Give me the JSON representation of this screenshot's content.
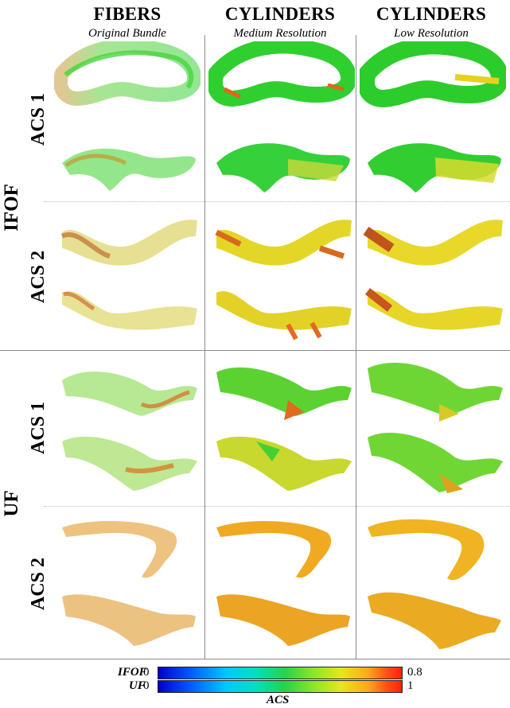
{
  "columns": [
    {
      "title": "FIBERS",
      "subtitle": "Original Bundle"
    },
    {
      "title": "CYLINDERS",
      "subtitle": "Medium Resolution"
    },
    {
      "title": "CYLINDERS",
      "subtitle": "Low Resolution"
    }
  ],
  "bundles": [
    {
      "label": "IFOF",
      "groups": [
        "ACS 1",
        "ACS 2"
      ]
    },
    {
      "label": "UF",
      "groups": [
        "ACS 1",
        "ACS 2"
      ]
    }
  ],
  "legend": {
    "rows": [
      {
        "label": "IFOF",
        "min": "0",
        "max": "0.8"
      },
      {
        "label": "UF",
        "min": "0",
        "max": "1"
      }
    ],
    "axis_label": "ACS"
  },
  "colors": {
    "colormap": [
      "#0000c8",
      "#0060ff",
      "#00c8ff",
      "#00e0c0",
      "#28d24a",
      "#8ee628",
      "#e6e61e",
      "#ffa81e",
      "#ff5014",
      "#ff2010"
    ],
    "ifof_acs1": "#3cd23c",
    "ifof_acs2": "#d6c83a",
    "uf_acs1": "#7ad83c",
    "uf_acs2": "#e89a28"
  }
}
